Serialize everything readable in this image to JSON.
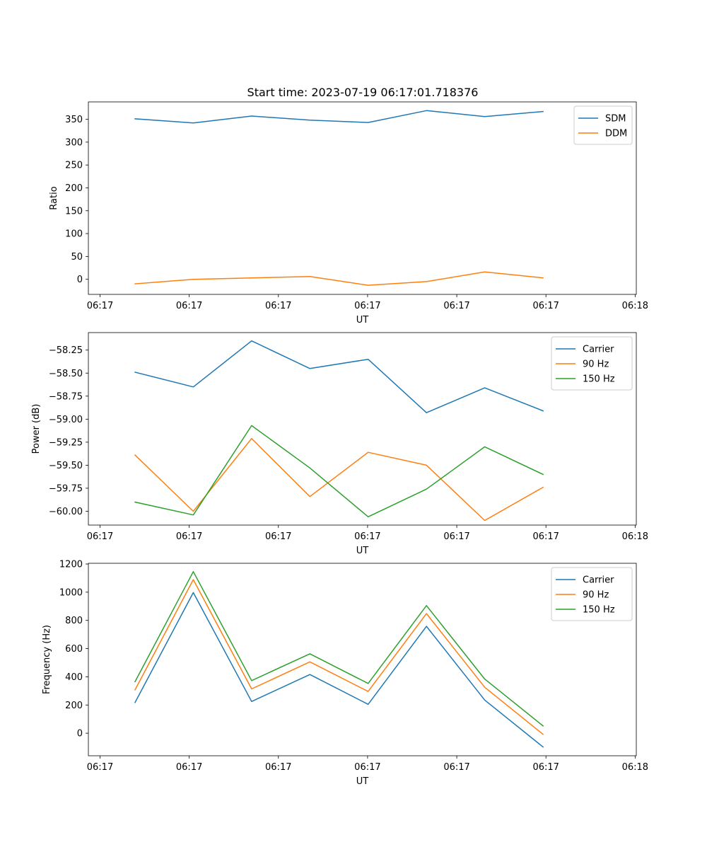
{
  "figure_title": "Start time: 2023-07-19 06:17:01.718376",
  "chart_data": [
    {
      "type": "line",
      "title": "Start time: 2023-07-19 06:17:01.718376",
      "xlabel": "UT",
      "ylabel": "Ratio",
      "x": [
        1,
        2,
        3,
        4,
        5,
        6,
        7,
        8
      ],
      "xlim": [
        0.2,
        9.6
      ],
      "xticks": [
        0.4,
        1.93,
        3.46,
        4.99,
        6.52,
        8.05,
        9.58
      ],
      "xtick_labels": [
        "06:17",
        "06:17",
        "06:17",
        "06:17",
        "06:17",
        "06:17",
        "06:18"
      ],
      "ylim": [
        -33,
        388
      ],
      "yticks": [
        0,
        50,
        100,
        150,
        200,
        250,
        300,
        350
      ],
      "ytick_labels": [
        "0",
        "50",
        "100",
        "150",
        "200",
        "250",
        "300",
        "350"
      ],
      "legend_position": "top-right",
      "grid": false,
      "series": [
        {
          "name": "SDM",
          "color": "#1f77b4",
          "values": [
            351,
            342,
            357,
            348,
            343,
            369,
            356,
            367
          ]
        },
        {
          "name": "DDM",
          "color": "#ff7f0e",
          "values": [
            -10,
            0,
            3,
            6,
            -13,
            -5,
            16,
            3
          ]
        }
      ]
    },
    {
      "type": "line",
      "title": "",
      "xlabel": "UT",
      "ylabel": "Power (dB)",
      "x": [
        1,
        2,
        3,
        4,
        5,
        6,
        7,
        8
      ],
      "xlim": [
        0.2,
        9.6
      ],
      "xticks": [
        0.4,
        1.93,
        3.46,
        4.99,
        6.52,
        8.05,
        9.58
      ],
      "xtick_labels": [
        "06:17",
        "06:17",
        "06:17",
        "06:17",
        "06:17",
        "06:17",
        "06:18"
      ],
      "ylim": [
        -60.15,
        -58.06
      ],
      "yticks": [
        -60.0,
        -59.75,
        -59.5,
        -59.25,
        -59.0,
        -58.75,
        -58.5,
        -58.25
      ],
      "ytick_labels": [
        "−60.00",
        "−59.75",
        "−59.50",
        "−59.25",
        "−59.00",
        "−58.75",
        "−58.50",
        "−58.25"
      ],
      "legend_position": "top-right",
      "grid": false,
      "series": [
        {
          "name": "Carrier",
          "color": "#1f77b4",
          "values": [
            -58.49,
            -58.65,
            -58.15,
            -58.45,
            -58.35,
            -58.93,
            -58.66,
            -58.91
          ]
        },
        {
          "name": "90 Hz",
          "color": "#ff7f0e",
          "values": [
            -59.39,
            -60.0,
            -59.21,
            -59.84,
            -59.36,
            -59.5,
            -60.1,
            -59.74
          ]
        },
        {
          "name": "150 Hz",
          "color": "#2ca02c",
          "values": [
            -59.9,
            -60.04,
            -59.07,
            -59.53,
            -60.06,
            -59.76,
            -59.3,
            -59.6
          ]
        }
      ]
    },
    {
      "type": "line",
      "title": "",
      "xlabel": "UT",
      "ylabel": "Frequency (Hz)",
      "x": [
        1,
        2,
        3,
        4,
        5,
        6,
        7,
        8
      ],
      "xlim": [
        0.2,
        9.6
      ],
      "xticks": [
        0.4,
        1.93,
        3.46,
        4.99,
        6.52,
        8.05,
        9.58
      ],
      "xtick_labels": [
        "06:17",
        "06:17",
        "06:17",
        "06:17",
        "06:17",
        "06:17",
        "06:18"
      ],
      "ylim": [
        -160,
        1205
      ],
      "yticks": [
        0,
        200,
        400,
        600,
        800,
        1000,
        1200
      ],
      "ytick_labels": [
        "0",
        "200",
        "400",
        "600",
        "800",
        "1000",
        "1200"
      ],
      "legend_position": "top-right",
      "grid": false,
      "series": [
        {
          "name": "Carrier",
          "color": "#1f77b4",
          "values": [
            218,
            997,
            225,
            416,
            205,
            758,
            235,
            -98
          ]
        },
        {
          "name": "90 Hz",
          "color": "#ff7f0e",
          "values": [
            307,
            1089,
            314,
            506,
            296,
            848,
            326,
            -8
          ]
        },
        {
          "name": "150 Hz",
          "color": "#2ca02c",
          "values": [
            365,
            1146,
            373,
            563,
            353,
            905,
            384,
            52
          ]
        }
      ]
    }
  ]
}
